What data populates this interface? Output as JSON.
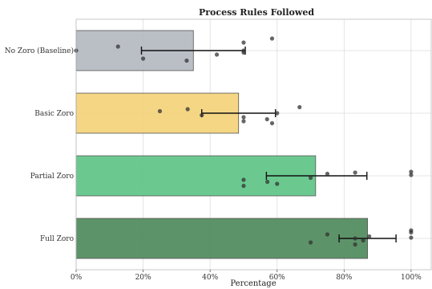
{
  "chart_data": {
    "type": "bar",
    "orientation": "horizontal",
    "title": "Process Rules Followed",
    "xlabel": "Percentage",
    "ylabel": "",
    "xlim": [
      0,
      1.06
    ],
    "x_ticks": [
      "0%",
      "20%",
      "40%",
      "60%",
      "80%",
      "100%"
    ],
    "x_tick_values": [
      0,
      0.2,
      0.4,
      0.6,
      0.8,
      1.0
    ],
    "grid": true,
    "categories": [
      "No Zoro (Baseline)",
      "Basic Zoro",
      "Partial Zoro",
      "Full Zoro"
    ],
    "values": [
      0.35,
      0.485,
      0.715,
      0.87
    ],
    "error_low": [
      0.195,
      0.375,
      0.568,
      0.785
    ],
    "error_high": [
      0.505,
      0.595,
      0.868,
      0.955
    ],
    "colors": [
      "#b4b8c0",
      "#f4d27a",
      "#5ec487",
      "#4f8a5c"
    ],
    "points": [
      [
        [
          0.0,
          0.5
        ],
        [
          0.125,
          0.6
        ],
        [
          0.2,
          0.3
        ],
        [
          0.33,
          0.25
        ],
        [
          0.42,
          0.4
        ],
        [
          0.5,
          0.7
        ],
        [
          0.5,
          0.5
        ],
        [
          0.5,
          0.45
        ],
        [
          0.585,
          0.8
        ]
      ],
      [
        [
          0.25,
          0.55
        ],
        [
          0.333,
          0.6
        ],
        [
          0.375,
          0.45
        ],
        [
          0.5,
          0.4
        ],
        [
          0.5,
          0.3
        ],
        [
          0.57,
          0.35
        ],
        [
          0.585,
          0.25
        ],
        [
          0.6,
          0.5
        ],
        [
          0.667,
          0.65
        ]
      ],
      [
        [
          0.5,
          0.4
        ],
        [
          0.5,
          0.25
        ],
        [
          0.571,
          0.35
        ],
        [
          0.6,
          0.3
        ],
        [
          0.7,
          0.45
        ],
        [
          0.75,
          0.55
        ],
        [
          0.833,
          0.58
        ],
        [
          1.0,
          0.6
        ],
        [
          1.0,
          0.52
        ]
      ],
      [
        [
          0.7,
          0.4
        ],
        [
          0.75,
          0.6
        ],
        [
          0.833,
          0.5
        ],
        [
          0.833,
          0.35
        ],
        [
          0.857,
          0.45
        ],
        [
          0.875,
          0.55
        ],
        [
          1.0,
          0.52
        ],
        [
          1.0,
          0.65
        ],
        [
          1.0,
          0.7
        ]
      ]
    ]
  }
}
